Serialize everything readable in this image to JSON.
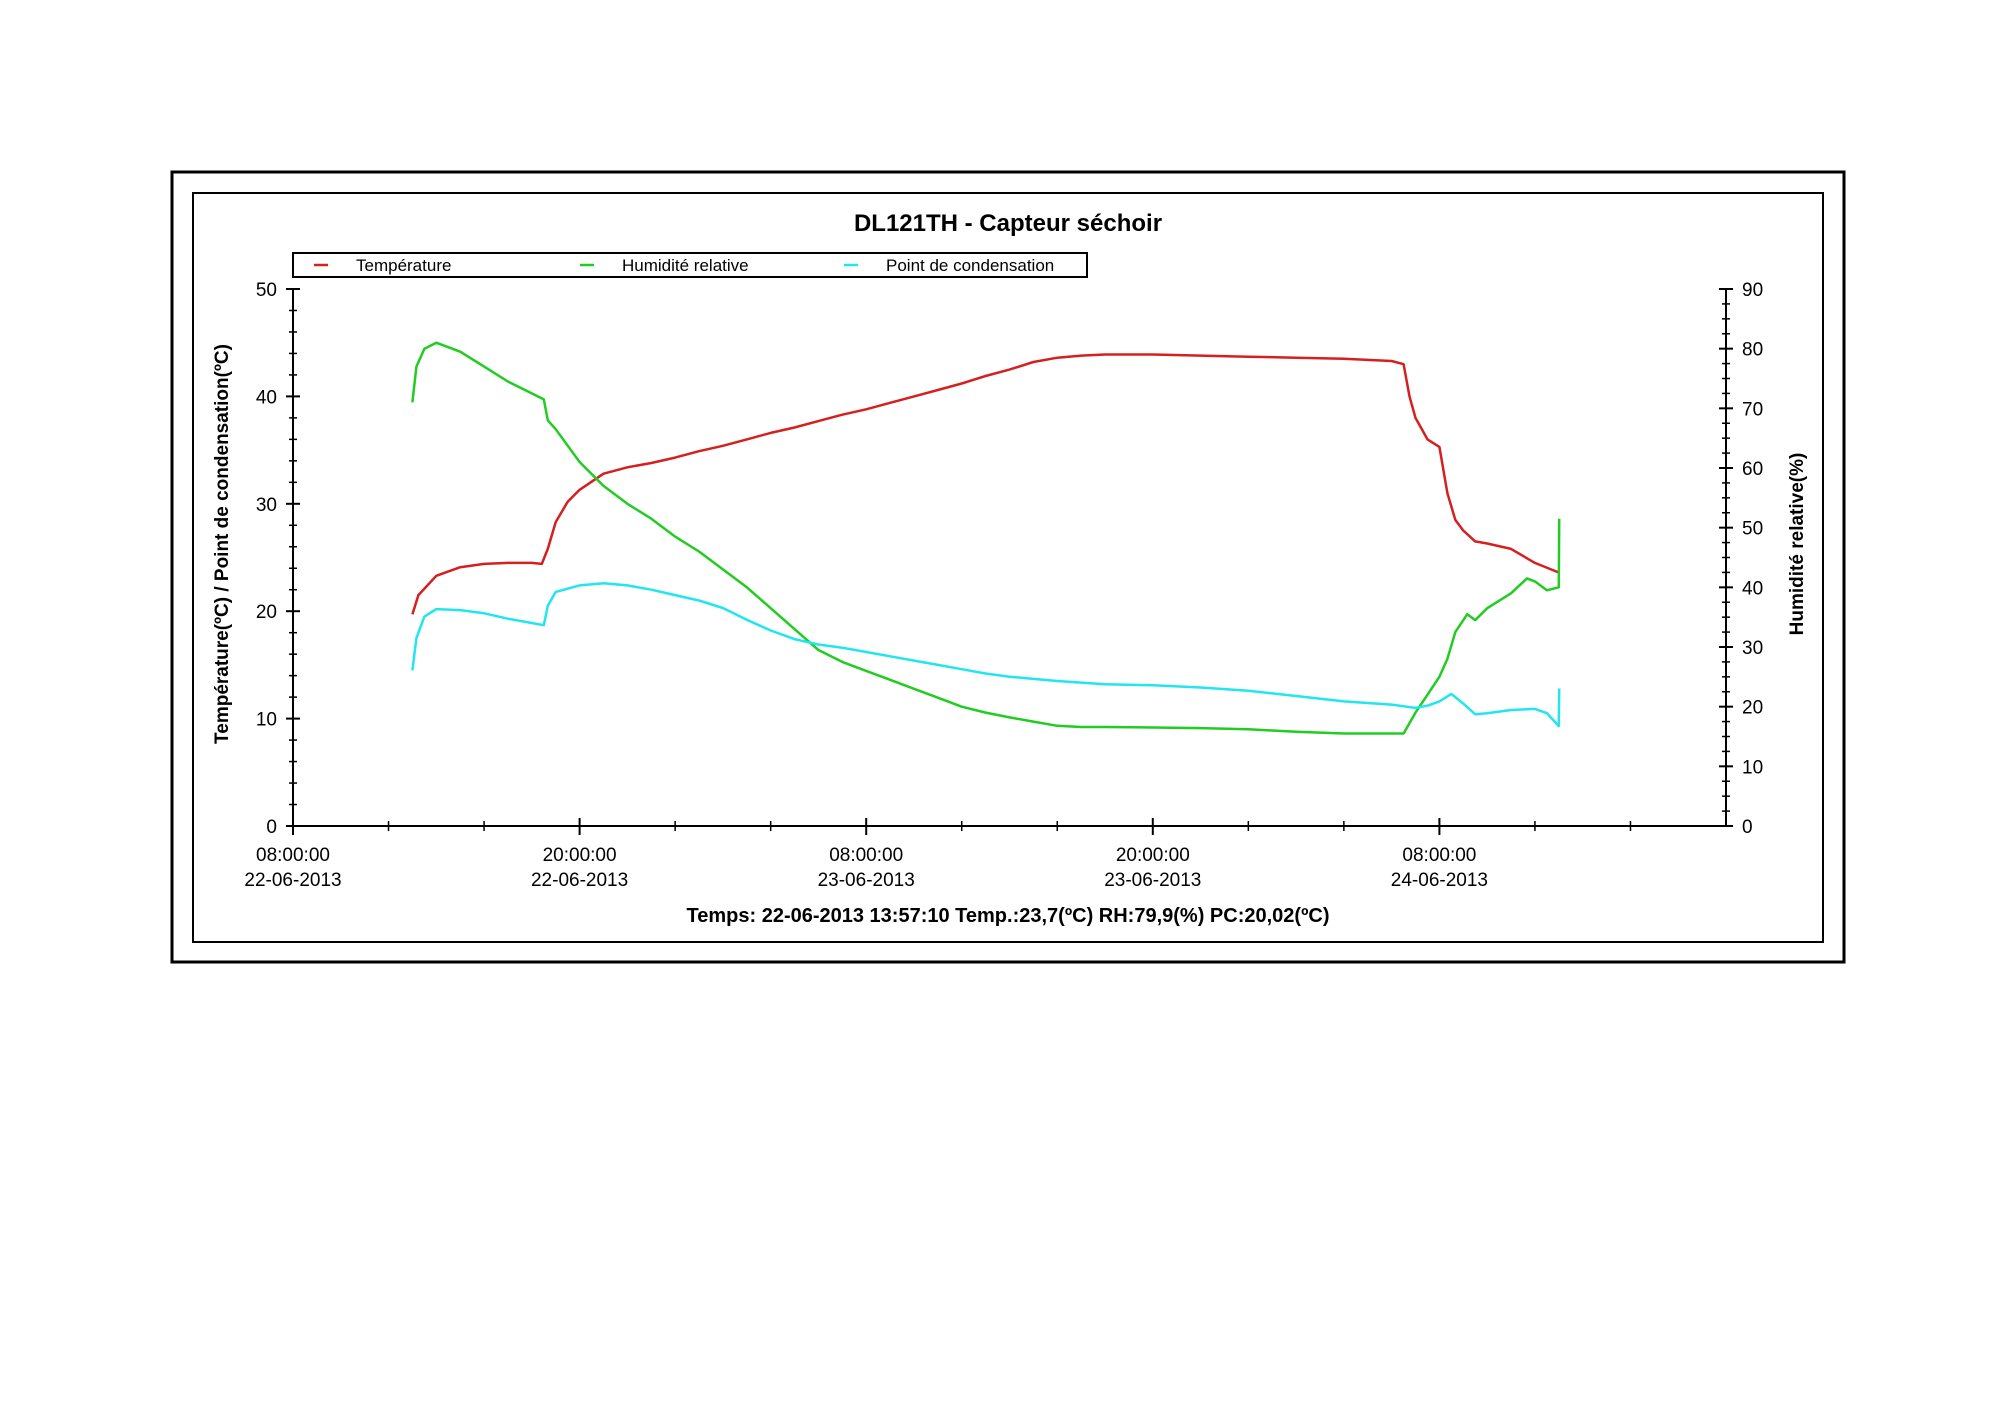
{
  "chart_data": {
    "type": "line",
    "title": "DL121TH - Capteur séchoir",
    "ylabel_left": "Température(ºC) / Point de condensation(ºC)",
    "ylabel_right": "Humidité relative(%)",
    "status_line": "Temps: 22-06-2013 13:57:10 Temp.:23,7(ºC) RH:79,9(%) PC:20,02(ºC)",
    "x_axis": {
      "start": "22-06-2013 08:00:00",
      "end": "24-06-2013 20:00:00",
      "ticks": [
        {
          "time": "08:00:00",
          "date": "22-06-2013"
        },
        {
          "time": "20:00:00",
          "date": "22-06-2013"
        },
        {
          "time": "08:00:00",
          "date": "23-06-2013"
        },
        {
          "time": "20:00:00",
          "date": "23-06-2013"
        },
        {
          "time": "08:00:00",
          "date": "24-06-2013"
        }
      ]
    },
    "y_left": {
      "min": 0,
      "max": 50,
      "ticks": [
        0,
        10,
        20,
        30,
        40,
        50
      ]
    },
    "y_right": {
      "min": 0,
      "max": 90,
      "ticks": [
        0,
        10,
        20,
        30,
        40,
        50,
        60,
        70,
        80,
        90
      ]
    },
    "legend_position": "top",
    "series": [
      {
        "name": "Température",
        "axis": "left",
        "color": "#d42020",
        "points": [
          [
            "22-06-2013 13:00",
            19.7
          ],
          [
            "22-06-2013 13:15",
            21.5
          ],
          [
            "22-06-2013 14:00",
            23.3
          ],
          [
            "22-06-2013 15:00",
            24.1
          ],
          [
            "22-06-2013 16:00",
            24.4
          ],
          [
            "22-06-2013 17:00",
            24.5
          ],
          [
            "22-06-2013 18:00",
            24.5
          ],
          [
            "22-06-2013 18:25",
            24.4
          ],
          [
            "22-06-2013 18:40",
            25.8
          ],
          [
            "22-06-2013 19:00",
            28.3
          ],
          [
            "22-06-2013 19:30",
            30.2
          ],
          [
            "22-06-2013 20:00",
            31.3
          ],
          [
            "22-06-2013 21:00",
            32.8
          ],
          [
            "22-06-2013 22:00",
            33.4
          ],
          [
            "22-06-2013 23:00",
            33.8
          ],
          [
            "23-06-2013 00:00",
            34.3
          ],
          [
            "23-06-2013 01:00",
            34.9
          ],
          [
            "23-06-2013 02:00",
            35.4
          ],
          [
            "23-06-2013 03:00",
            36.0
          ],
          [
            "23-06-2013 04:00",
            36.6
          ],
          [
            "23-06-2013 05:00",
            37.1
          ],
          [
            "23-06-2013 06:00",
            37.7
          ],
          [
            "23-06-2013 07:00",
            38.3
          ],
          [
            "23-06-2013 08:00",
            38.8
          ],
          [
            "23-06-2013 09:00",
            39.4
          ],
          [
            "23-06-2013 10:00",
            40.0
          ],
          [
            "23-06-2013 11:00",
            40.6
          ],
          [
            "23-06-2013 12:00",
            41.2
          ],
          [
            "23-06-2013 13:00",
            41.9
          ],
          [
            "23-06-2013 14:00",
            42.5
          ],
          [
            "23-06-2013 15:00",
            43.2
          ],
          [
            "23-06-2013 16:00",
            43.6
          ],
          [
            "23-06-2013 17:00",
            43.8
          ],
          [
            "23-06-2013 18:00",
            43.9
          ],
          [
            "23-06-2013 19:00",
            43.9
          ],
          [
            "23-06-2013 20:00",
            43.9
          ],
          [
            "23-06-2013 22:00",
            43.8
          ],
          [
            "24-06-2013 00:00",
            43.7
          ],
          [
            "24-06-2013 02:00",
            43.6
          ],
          [
            "24-06-2013 04:00",
            43.5
          ],
          [
            "24-06-2013 06:00",
            43.3
          ],
          [
            "24-06-2013 06:30",
            43.0
          ],
          [
            "24-06-2013 06:45",
            40.0
          ],
          [
            "24-06-2013 07:00",
            38.0
          ],
          [
            "24-06-2013 07:30",
            36.0
          ],
          [
            "24-06-2013 08:00",
            35.3
          ],
          [
            "24-06-2013 08:20",
            31.0
          ],
          [
            "24-06-2013 08:40",
            28.5
          ],
          [
            "24-06-2013 09:00",
            27.5
          ],
          [
            "24-06-2013 09:30",
            26.5
          ],
          [
            "24-06-2013 10:00",
            26.3
          ],
          [
            "24-06-2013 11:00",
            25.8
          ],
          [
            "24-06-2013 12:00",
            24.5
          ],
          [
            "24-06-2013 13:00",
            23.6
          ]
        ]
      },
      {
        "name": "Humidité relative",
        "axis": "right",
        "color": "#22cc22",
        "points": [
          [
            "22-06-2013 13:00",
            71
          ],
          [
            "22-06-2013 13:10",
            77
          ],
          [
            "22-06-2013 13:30",
            80
          ],
          [
            "22-06-2013 14:00",
            81
          ],
          [
            "22-06-2013 15:00",
            79.5
          ],
          [
            "22-06-2013 16:00",
            77
          ],
          [
            "22-06-2013 17:00",
            74.5
          ],
          [
            "22-06-2013 18:00",
            72.5
          ],
          [
            "22-06-2013 18:30",
            71.5
          ],
          [
            "22-06-2013 18:40",
            68
          ],
          [
            "22-06-2013 19:00",
            66.5
          ],
          [
            "22-06-2013 20:00",
            61
          ],
          [
            "22-06-2013 21:00",
            57
          ],
          [
            "22-06-2013 22:00",
            54
          ],
          [
            "22-06-2013 23:00",
            51.5
          ],
          [
            "23-06-2013 00:00",
            48.5
          ],
          [
            "23-06-2013 01:00",
            46
          ],
          [
            "23-06-2013 02:00",
            43
          ],
          [
            "23-06-2013 03:00",
            40
          ],
          [
            "23-06-2013 04:00",
            36.5
          ],
          [
            "23-06-2013 05:00",
            33
          ],
          [
            "23-06-2013 06:00",
            29.5
          ],
          [
            "23-06-2013 07:00",
            27.5
          ],
          [
            "23-06-2013 08:00",
            26
          ],
          [
            "23-06-2013 09:00",
            24.5
          ],
          [
            "23-06-2013 10:00",
            23
          ],
          [
            "23-06-2013 11:00",
            21.5
          ],
          [
            "23-06-2013 12:00",
            20
          ],
          [
            "23-06-2013 13:00",
            19
          ],
          [
            "23-06-2013 14:00",
            18.2
          ],
          [
            "23-06-2013 15:00",
            17.5
          ],
          [
            "23-06-2013 16:00",
            16.8
          ],
          [
            "23-06-2013 17:00",
            16.6
          ],
          [
            "23-06-2013 18:00",
            16.6
          ],
          [
            "23-06-2013 20:00",
            16.5
          ],
          [
            "23-06-2013 22:00",
            16.4
          ],
          [
            "24-06-2013 00:00",
            16.2
          ],
          [
            "24-06-2013 02:00",
            15.8
          ],
          [
            "24-06-2013 04:00",
            15.5
          ],
          [
            "24-06-2013 06:00",
            15.5
          ],
          [
            "24-06-2013 06:30",
            15.5
          ],
          [
            "24-06-2013 07:00",
            19
          ],
          [
            "24-06-2013 07:30",
            22
          ],
          [
            "24-06-2013 08:00",
            25
          ],
          [
            "24-06-2013 08:20",
            28
          ],
          [
            "24-06-2013 08:40",
            32.5
          ],
          [
            "24-06-2013 09:10",
            35.5
          ],
          [
            "24-06-2013 09:30",
            34.5
          ],
          [
            "24-06-2013 10:00",
            36.5
          ],
          [
            "24-06-2013 11:00",
            39
          ],
          [
            "24-06-2013 11:40",
            41.5
          ],
          [
            "24-06-2013 12:00",
            41
          ],
          [
            "24-06-2013 12:30",
            39.5
          ],
          [
            "24-06-2013 13:00",
            40
          ],
          [
            "24-06-2013 13:01",
            51.5
          ]
        ]
      },
      {
        "name": "Point de condensation",
        "axis": "left",
        "color": "#22e5f0",
        "points": [
          [
            "22-06-2013 13:00",
            14.5
          ],
          [
            "22-06-2013 13:10",
            17.5
          ],
          [
            "22-06-2013 13:30",
            19.5
          ],
          [
            "22-06-2013 14:00",
            20.2
          ],
          [
            "22-06-2013 15:00",
            20.1
          ],
          [
            "22-06-2013 16:00",
            19.8
          ],
          [
            "22-06-2013 17:00",
            19.3
          ],
          [
            "22-06-2013 18:00",
            18.9
          ],
          [
            "22-06-2013 18:30",
            18.7
          ],
          [
            "22-06-2013 18:40",
            20.5
          ],
          [
            "22-06-2013 19:00",
            21.8
          ],
          [
            "22-06-2013 20:00",
            22.4
          ],
          [
            "22-06-2013 21:00",
            22.6
          ],
          [
            "22-06-2013 22:00",
            22.4
          ],
          [
            "22-06-2013 23:00",
            22.0
          ],
          [
            "23-06-2013 00:00",
            21.5
          ],
          [
            "23-06-2013 01:00",
            21.0
          ],
          [
            "23-06-2013 02:00",
            20.3
          ],
          [
            "23-06-2013 03:00",
            19.2
          ],
          [
            "23-06-2013 04:00",
            18.2
          ],
          [
            "23-06-2013 05:00",
            17.4
          ],
          [
            "23-06-2013 06:00",
            16.9
          ],
          [
            "23-06-2013 07:00",
            16.6
          ],
          [
            "23-06-2013 08:00",
            16.2
          ],
          [
            "23-06-2013 09:00",
            15.8
          ],
          [
            "23-06-2013 10:00",
            15.4
          ],
          [
            "23-06-2013 11:00",
            15.0
          ],
          [
            "23-06-2013 12:00",
            14.6
          ],
          [
            "23-06-2013 13:00",
            14.2
          ],
          [
            "23-06-2013 14:00",
            13.9
          ],
          [
            "23-06-2013 15:00",
            13.7
          ],
          [
            "23-06-2013 16:00",
            13.5
          ],
          [
            "23-06-2013 18:00",
            13.2
          ],
          [
            "23-06-2013 20:00",
            13.1
          ],
          [
            "23-06-2013 22:00",
            12.9
          ],
          [
            "24-06-2013 00:00",
            12.6
          ],
          [
            "24-06-2013 02:00",
            12.1
          ],
          [
            "24-06-2013 04:00",
            11.6
          ],
          [
            "24-06-2013 06:00",
            11.3
          ],
          [
            "24-06-2013 07:00",
            11.0
          ],
          [
            "24-06-2013 07:30",
            11.2
          ],
          [
            "24-06-2013 08:00",
            11.6
          ],
          [
            "24-06-2013 08:30",
            12.3
          ],
          [
            "24-06-2013 09:00",
            11.4
          ],
          [
            "24-06-2013 09:30",
            10.4
          ],
          [
            "24-06-2013 10:00",
            10.5
          ],
          [
            "24-06-2013 11:00",
            10.8
          ],
          [
            "24-06-2013 12:00",
            10.9
          ],
          [
            "24-06-2013 12:30",
            10.5
          ],
          [
            "24-06-2013 13:00",
            9.3
          ],
          [
            "24-06-2013 13:01",
            12.8
          ]
        ]
      }
    ]
  }
}
